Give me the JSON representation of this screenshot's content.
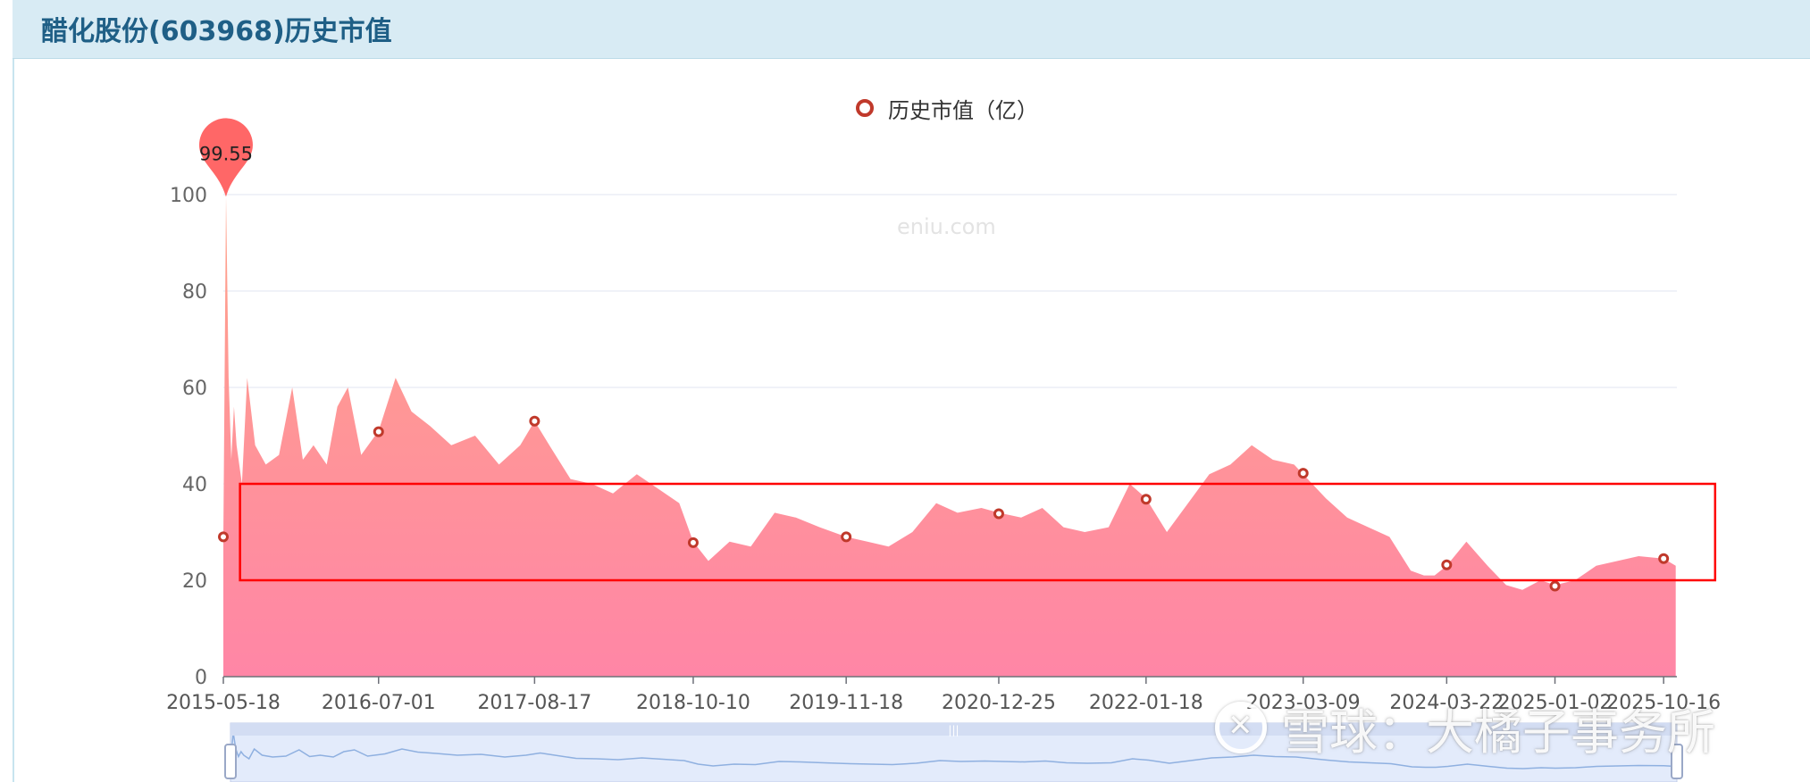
{
  "page": {
    "title": "醋化股份(603968)历史市值"
  },
  "watermark": "eniu.com",
  "overlay_watermark": "雪球：大橘子事务所",
  "legend": {
    "label": "历史市值（亿）"
  },
  "colors": {
    "header_bg": "#d8ebf4",
    "title": "#1f5f86",
    "area_top": "#ffa38a",
    "area_bottom": "#ff86a6",
    "marker": "#c0392b",
    "pin": "#ff5a5a",
    "highlight_box": "#ff0000",
    "grid": "#e0e6f1"
  },
  "chart_data": {
    "type": "area",
    "title": "醋化股份(603968)历史市值",
    "xlabel": "",
    "ylabel": "",
    "ylim": [
      0,
      100
    ],
    "yticks": [
      0,
      20,
      40,
      60,
      80,
      100
    ],
    "x_ticks": [
      "2015-05-18",
      "2016-07-01",
      "2017-08-17",
      "2018-10-10",
      "2019-11-18",
      "2020-12-25",
      "2022-01-18",
      "2023-03-09",
      "2024-03-22",
      "2025-01-02",
      "2025-10-16"
    ],
    "series": [
      {
        "name": "历史市值（亿）",
        "x": [
          "2015-05-18",
          "2015-05-25",
          "2015-06-01",
          "2015-06-08",
          "2015-06-15",
          "2015-06-22",
          "2015-07-06",
          "2015-07-20",
          "2015-08-10",
          "2015-09-07",
          "2015-10-12",
          "2015-11-16",
          "2015-12-14",
          "2016-01-11",
          "2016-02-15",
          "2016-03-14",
          "2016-04-11",
          "2016-05-16",
          "2016-07-01",
          "2016-08-15",
          "2016-09-26",
          "2016-11-14",
          "2017-01-09",
          "2017-03-13",
          "2017-05-15",
          "2017-07-10",
          "2017-08-17",
          "2017-09-25",
          "2017-11-20",
          "2018-01-15",
          "2018-03-12",
          "2018-05-14",
          "2018-07-09",
          "2018-09-03",
          "2018-10-10",
          "2018-11-19",
          "2019-01-14",
          "2019-03-11",
          "2019-05-13",
          "2019-07-08",
          "2019-09-09",
          "2019-11-18",
          "2020-01-13",
          "2020-03-09",
          "2020-05-11",
          "2020-07-13",
          "2020-09-07",
          "2020-11-09",
          "2020-12-25",
          "2021-02-22",
          "2021-04-19",
          "2021-06-14",
          "2021-08-09",
          "2021-10-11",
          "2021-12-06",
          "2022-01-18",
          "2022-03-14",
          "2022-05-09",
          "2022-07-04",
          "2022-08-29",
          "2022-10-24",
          "2022-12-19",
          "2023-02-13",
          "2023-03-09",
          "2023-05-08",
          "2023-07-03",
          "2023-08-28",
          "2023-10-23",
          "2023-12-18",
          "2024-01-22",
          "2024-02-19",
          "2024-03-22",
          "2024-05-13",
          "2024-07-08",
          "2024-08-26",
          "2024-10-08",
          "2024-11-25",
          "2025-01-02",
          "2025-02-24",
          "2025-04-21",
          "2025-06-16",
          "2025-08-11",
          "2025-10-16",
          "2025-11-17"
        ],
        "values": [
          29,
          99.55,
          62,
          45,
          56,
          48,
          40,
          62,
          48,
          44,
          46,
          60,
          45,
          48,
          44,
          56,
          60,
          46,
          51,
          62,
          55,
          52,
          48,
          50,
          44,
          48,
          53,
          48,
          41,
          40,
          38,
          42,
          39,
          36,
          28,
          24,
          28,
          27,
          34,
          33,
          31,
          29,
          28,
          27,
          30,
          36,
          34,
          35,
          34,
          33,
          35,
          31,
          30,
          31,
          40,
          37,
          30,
          36,
          42,
          44,
          48,
          45,
          44,
          42,
          37,
          33,
          31,
          29,
          22,
          21,
          21,
          23,
          28,
          23,
          19,
          18,
          20,
          19,
          20,
          23,
          24,
          25,
          24.5,
          23
        ]
      }
    ],
    "markers": [
      {
        "x": "2015-05-18",
        "y": 29
      },
      {
        "x": "2016-07-01",
        "y": 50.8
      },
      {
        "x": "2017-08-17",
        "y": 53
      },
      {
        "x": "2018-10-10",
        "y": 27.8
      },
      {
        "x": "2019-11-18",
        "y": 29
      },
      {
        "x": "2020-12-25",
        "y": 33.8
      },
      {
        "x": "2022-01-18",
        "y": 36.8
      },
      {
        "x": "2023-03-09",
        "y": 42.2
      },
      {
        "x": "2024-03-22",
        "y": 23.2
      },
      {
        "x": "2025-01-02",
        "y": 18.8
      },
      {
        "x": "2025-10-16",
        "y": 24.5
      }
    ],
    "max_point": {
      "x": "2015-05-25",
      "y": 99.55,
      "label": "99.55"
    },
    "highlight_range": {
      "y_from": 20,
      "y_to": 40,
      "x_from": "2015-07-01",
      "x_to": "2026-03-01"
    },
    "grid": true,
    "legend_position": "top-center",
    "datazoom": true
  }
}
